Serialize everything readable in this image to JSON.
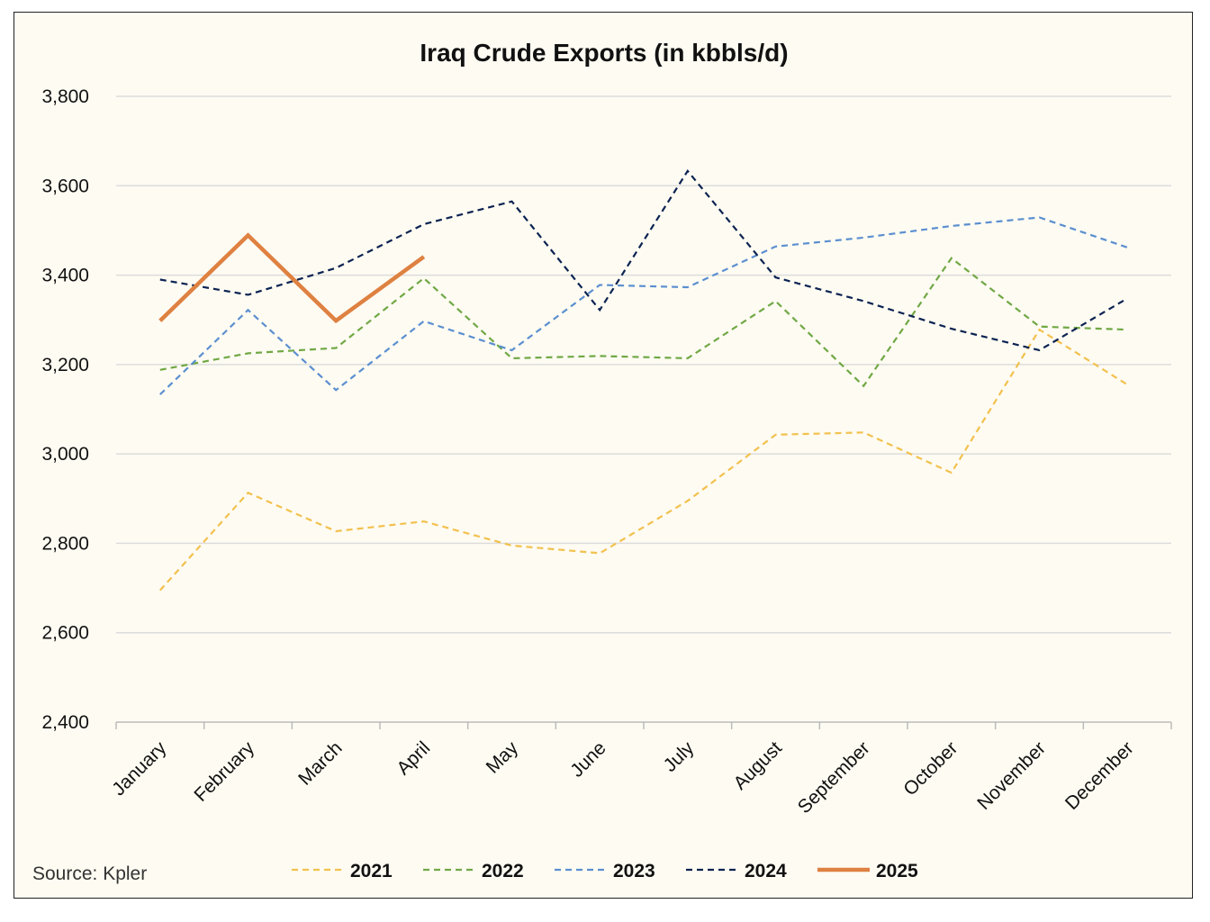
{
  "chart_data": {
    "type": "line",
    "title": "Iraq Crude Exports (in kbbls/d)",
    "source": "Source: Kpler",
    "categories": [
      "January",
      "February",
      "March",
      "April",
      "May",
      "June",
      "July",
      "August",
      "September",
      "October",
      "November",
      "December"
    ],
    "ylim": [
      2400,
      3800
    ],
    "yticks": [
      2400,
      2600,
      2800,
      3000,
      3200,
      3400,
      3600,
      3800
    ],
    "ytick_labels": [
      "2,400",
      "2,600",
      "2,800",
      "3,000",
      "3,200",
      "3,400",
      "3,600",
      "3,800"
    ],
    "grid": true,
    "legend_position": "bottom",
    "series": [
      {
        "name": "2021",
        "color": "#f2c14e",
        "dashed": true,
        "values": [
          2695,
          2913,
          2827,
          2849,
          2795,
          2778,
          2895,
          3043,
          3048,
          2958,
          3278,
          3155
        ]
      },
      {
        "name": "2022",
        "color": "#70a845",
        "dashed": true,
        "values": [
          3188,
          3225,
          3237,
          3393,
          3214,
          3219,
          3214,
          3342,
          3152,
          3438,
          3285,
          3278
        ]
      },
      {
        "name": "2023",
        "color": "#5b8fd0",
        "dashed": true,
        "values": [
          3133,
          3322,
          3143,
          3297,
          3232,
          3378,
          3373,
          3464,
          3484,
          3510,
          3529,
          3462
        ]
      },
      {
        "name": "2024",
        "color": "#0b2352",
        "dashed": true,
        "values": [
          3390,
          3356,
          3416,
          3514,
          3565,
          3322,
          3633,
          3395,
          3342,
          3280,
          3232,
          3348
        ]
      },
      {
        "name": "2025",
        "color": "#de8141",
        "dashed": false,
        "values": [
          3298,
          3489,
          3298,
          3441,
          null,
          null,
          null,
          null,
          null,
          null,
          null,
          null
        ]
      }
    ]
  }
}
